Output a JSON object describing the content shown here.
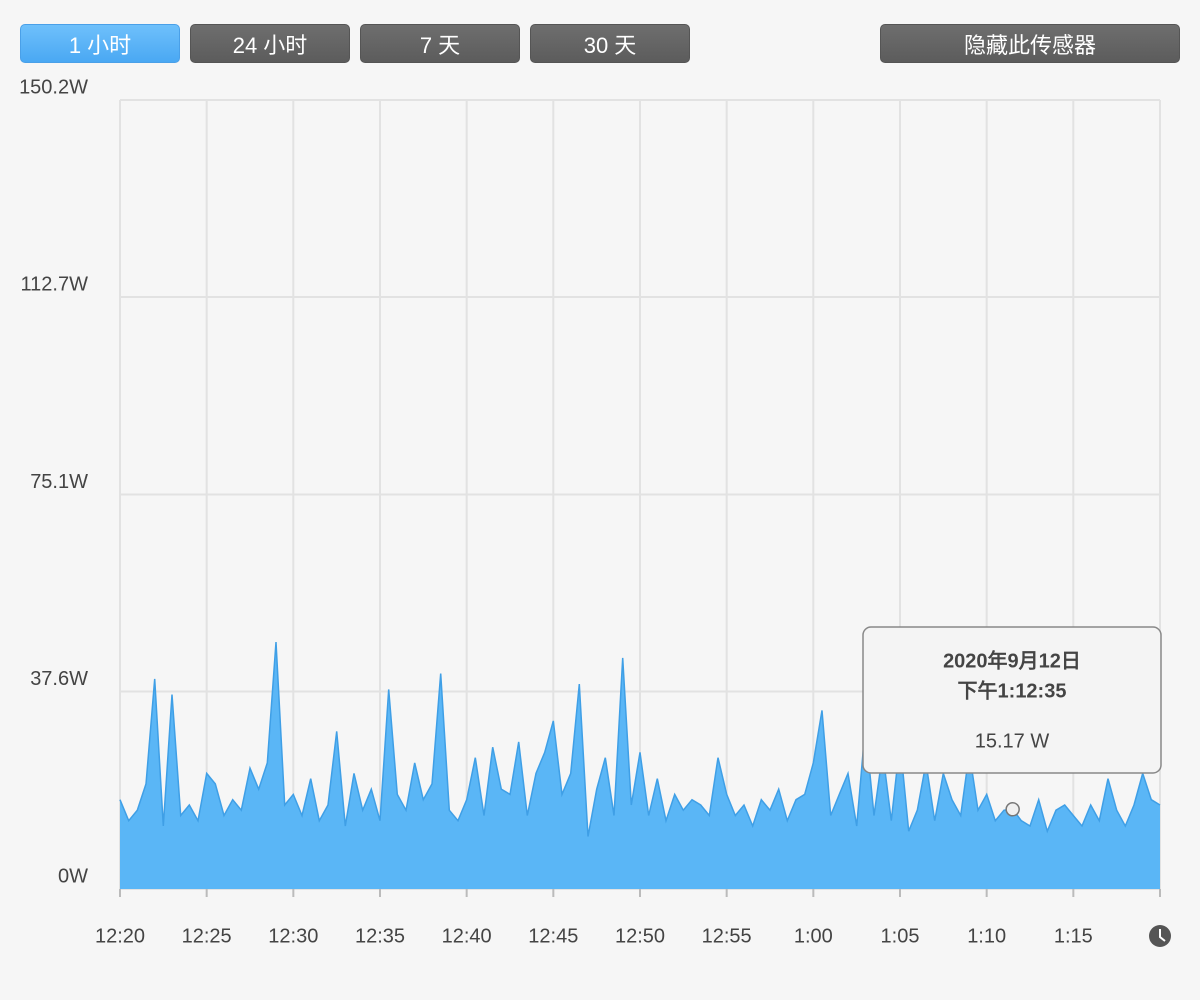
{
  "buttons": {
    "ranges": [
      "1 小时",
      "24 小时",
      "7 天",
      "30 天"
    ],
    "active": 0,
    "hide": "隐藏此传感器"
  },
  "chart_data": {
    "type": "area",
    "categories": [
      "12:20",
      null,
      null,
      null,
      null,
      null,
      null,
      null,
      null,
      null,
      "12:25",
      null,
      null,
      null,
      null,
      null,
      null,
      null,
      null,
      null,
      "12:30",
      null,
      null,
      null,
      null,
      null,
      null,
      null,
      null,
      null,
      "12:35",
      null,
      null,
      null,
      null,
      null,
      null,
      null,
      null,
      null,
      "12:40",
      null,
      null,
      null,
      null,
      null,
      null,
      null,
      null,
      null,
      "12:45",
      null,
      null,
      null,
      null,
      null,
      null,
      null,
      null,
      null,
      "12:50",
      null,
      null,
      null,
      null,
      null,
      null,
      null,
      null,
      null,
      "12:55",
      null,
      null,
      null,
      null,
      null,
      null,
      null,
      null,
      null,
      "1:00",
      null,
      null,
      null,
      null,
      null,
      null,
      null,
      null,
      null,
      "1:05",
      null,
      null,
      null,
      null,
      null,
      null,
      null,
      null,
      null,
      "1:10",
      null,
      null,
      null,
      null,
      null,
      null,
      null,
      null,
      null,
      "1:15",
      null,
      null,
      null,
      null,
      null,
      null,
      null,
      null,
      null,
      null
    ],
    "series": [
      {
        "color": "#5ab6f6",
        "values": [
          17,
          13,
          15,
          20,
          40,
          12,
          37,
          14,
          16,
          13,
          22,
          20,
          14,
          17,
          15,
          23,
          19,
          24,
          47,
          16,
          18,
          14,
          21,
          13,
          16,
          30,
          12,
          22,
          15,
          19,
          13,
          38,
          18,
          15,
          24,
          17,
          20,
          41,
          15,
          13,
          17,
          25,
          14,
          27,
          19,
          18,
          28,
          14,
          22,
          26,
          32,
          18,
          22,
          39,
          10,
          19,
          25,
          14,
          44,
          16,
          26,
          14,
          21,
          13,
          18,
          15,
          17,
          16,
          14,
          25,
          18,
          14,
          16,
          12,
          17,
          15,
          19,
          13,
          17,
          18,
          24,
          34,
          14,
          18,
          22,
          12,
          31,
          14,
          26,
          13,
          28,
          11,
          15,
          24,
          13,
          22,
          17,
          14,
          26,
          15,
          18,
          13,
          15,
          15.17,
          13,
          12,
          17,
          11,
          15,
          16,
          14,
          12,
          16,
          13,
          21,
          15,
          12,
          16,
          22,
          17,
          16
        ]
      }
    ],
    "ylim": [
      0,
      150.2
    ],
    "yticks": [
      {
        "value": 0,
        "label": "0W"
      },
      {
        "value": 37.6,
        "label": "37.6W"
      },
      {
        "value": 75.1,
        "label": "75.1W"
      },
      {
        "value": 112.7,
        "label": "112.7W"
      },
      {
        "value": 150.2,
        "label": "150.2W"
      }
    ],
    "grid": true,
    "tooltip": {
      "index": 103,
      "date": "2020年9月12日",
      "time": "下午1:12:35",
      "value_label": "15.17 W"
    }
  }
}
